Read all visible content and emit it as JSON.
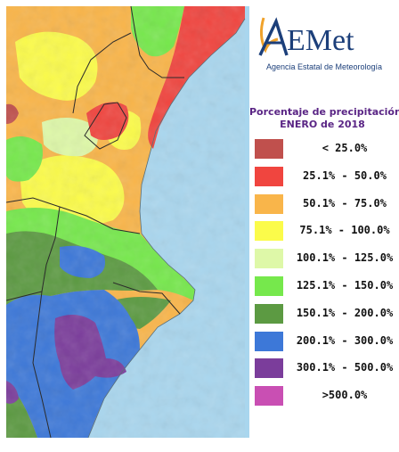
{
  "logo": {
    "brand_text": "AEMet",
    "subtitle": "Agencia Estatal de Meteorología"
  },
  "legend": {
    "title_line1": "Porcentaje de precipitación",
    "title_line2": "ENERO de 2018",
    "items": [
      {
        "label": "< 25.0%",
        "color": "#c0504d"
      },
      {
        "label": "25.1% - 50.0%",
        "color": "#f0453f"
      },
      {
        "label": "50.1% - 75.0%",
        "color": "#f9b54a"
      },
      {
        "label": "75.1% - 100.0%",
        "color": "#fbfb4a"
      },
      {
        "label": "100.1% - 125.0%",
        "color": "#def8a8"
      },
      {
        "label": "125.1% - 150.0%",
        "color": "#76e84c"
      },
      {
        "label": "150.1% - 200.0%",
        "color": "#5c9a42"
      },
      {
        "label": "200.1% - 300.0%",
        "color": "#3d78d8"
      },
      {
        "label": "300.1% - 500.0%",
        "color": "#7b3d9b"
      },
      {
        "label": ">500.0%",
        "color": "#c94fb3"
      }
    ]
  },
  "map": {
    "sea_color": "#a9d6ee",
    "border_color": "#2b2b2b"
  }
}
